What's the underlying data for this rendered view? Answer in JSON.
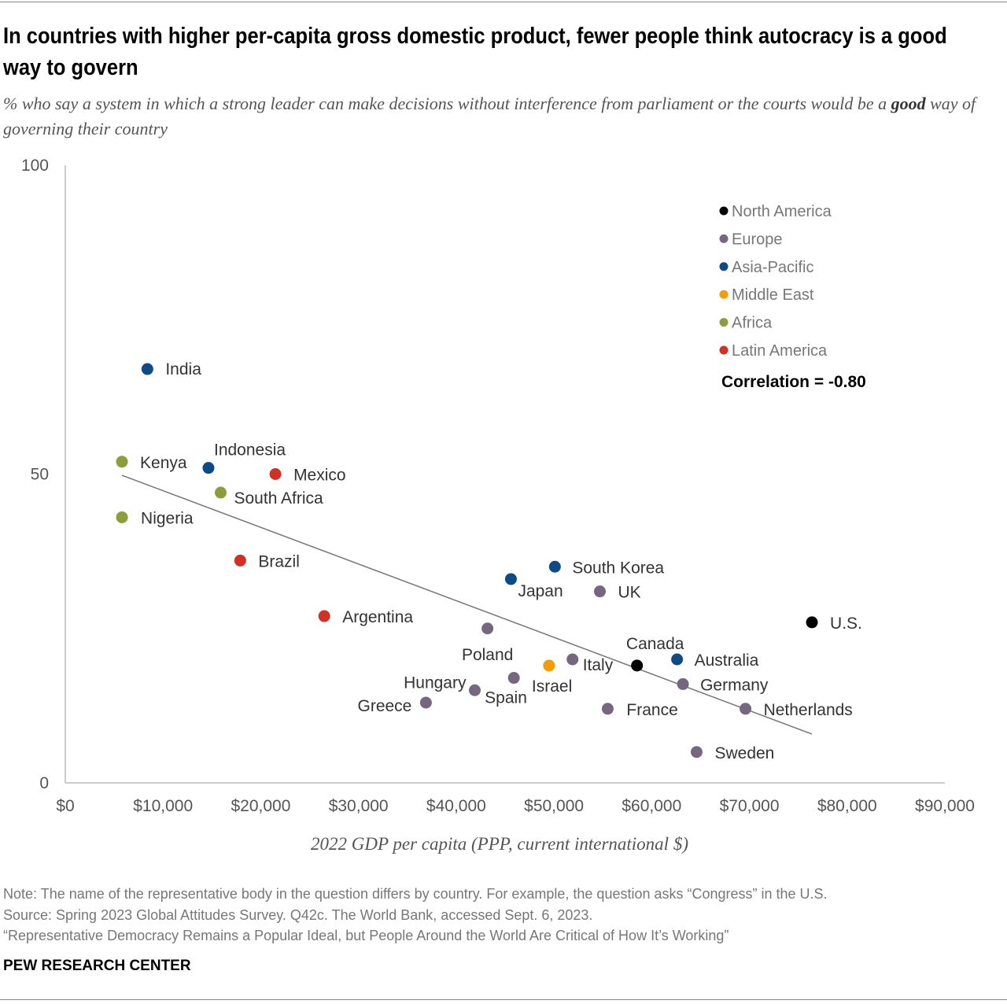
{
  "title": "In countries with higher per-capita gross domestic product, fewer people think autocracy is a good way to govern",
  "subtitle_pre": "% who say a system in which a strong leader can make decisions without interference from parliament or the courts would be a ",
  "subtitle_bold": "good",
  "subtitle_post": " way of governing their country",
  "footer": {
    "note": "Note: The name of the representative body in the question differs by country. For example, the question asks “Congress” in the U.S.",
    "source": "Source: Spring 2023 Global Attitudes Survey. Q42c. The World Bank, accessed Sept. 6, 2023.",
    "report": "“Representative Democracy Remains a Popular Ideal, but People Around the World Are Critical of How It’s Working”",
    "brand": "PEW RESEARCH CENTER"
  },
  "chart_data": {
    "type": "scatter",
    "title": "In countries with higher per-capita gross domestic product, fewer people think autocracy is a good way to govern",
    "xlabel": "2022 GDP per capita (PPP, current international $)",
    "ylabel": "",
    "xlim": [
      0,
      90000
    ],
    "ylim": [
      0,
      100
    ],
    "x_ticks": [
      "$0",
      "$10,000",
      "$20,000",
      "$30,000",
      "$40,000",
      "$50,000",
      "$60,000",
      "$70,000",
      "$80,000",
      "$90,000"
    ],
    "y_ticks": [
      "0",
      "50",
      "100"
    ],
    "grid": false,
    "legend_position": "top-right",
    "annotation": "Correlation = -0.80",
    "trendline": {
      "x": [
        5800,
        76400
      ],
      "y": [
        49.8,
        7.9
      ]
    },
    "regions": [
      {
        "name": "North America",
        "color": "#000000"
      },
      {
        "name": "Europe",
        "color": "#756780"
      },
      {
        "name": "Asia-Pacific",
        "color": "#0d4a86"
      },
      {
        "name": "Middle East",
        "color": "#f59c00"
      },
      {
        "name": "Africa",
        "color": "#8c9d3c"
      },
      {
        "name": "Latin America",
        "color": "#d22f25"
      }
    ],
    "points": [
      {
        "label": "India",
        "region": "Asia-Pacific",
        "x": 8400,
        "y": 67
      },
      {
        "label": "Kenya",
        "region": "Africa",
        "x": 5800,
        "y": 52
      },
      {
        "label": "Indonesia",
        "region": "Asia-Pacific",
        "x": 14650,
        "y": 51
      },
      {
        "label": "Mexico",
        "region": "Latin America",
        "x": 21500,
        "y": 50
      },
      {
        "label": "South Africa",
        "region": "Africa",
        "x": 15900,
        "y": 47
      },
      {
        "label": "Nigeria",
        "region": "Africa",
        "x": 5800,
        "y": 43
      },
      {
        "label": "Brazil",
        "region": "Latin America",
        "x": 17900,
        "y": 36
      },
      {
        "label": "Argentina",
        "region": "Latin America",
        "x": 26500,
        "y": 27
      },
      {
        "label": "Poland",
        "region": "Europe",
        "x": 43200,
        "y": 25
      },
      {
        "label": "Japan",
        "region": "Asia-Pacific",
        "x": 45600,
        "y": 33
      },
      {
        "label": "South Korea",
        "region": "Asia-Pacific",
        "x": 50100,
        "y": 35
      },
      {
        "label": "UK",
        "region": "Europe",
        "x": 54700,
        "y": 31
      },
      {
        "label": "U.S.",
        "region": "North America",
        "x": 76400,
        "y": 26
      },
      {
        "label": "Canada",
        "region": "North America",
        "x": 58500,
        "y": 19
      },
      {
        "label": "Australia",
        "region": "Asia-Pacific",
        "x": 62600,
        "y": 20
      },
      {
        "label": "Italy",
        "region": "Europe",
        "x": 51900,
        "y": 20
      },
      {
        "label": "Israel",
        "region": "Middle East",
        "x": 49500,
        "y": 19
      },
      {
        "label": "Spain",
        "region": "Europe",
        "x": 45900,
        "y": 17
      },
      {
        "label": "Hungary",
        "region": "Europe",
        "x": 41900,
        "y": 15
      },
      {
        "label": "Greece",
        "region": "Europe",
        "x": 36900,
        "y": 13
      },
      {
        "label": "Germany",
        "region": "Europe",
        "x": 63200,
        "y": 16
      },
      {
        "label": "France",
        "region": "Europe",
        "x": 55500,
        "y": 12
      },
      {
        "label": "Netherlands",
        "region": "Europe",
        "x": 69600,
        "y": 12
      },
      {
        "label": "Sweden",
        "region": "Europe",
        "x": 64600,
        "y": 5
      }
    ]
  }
}
